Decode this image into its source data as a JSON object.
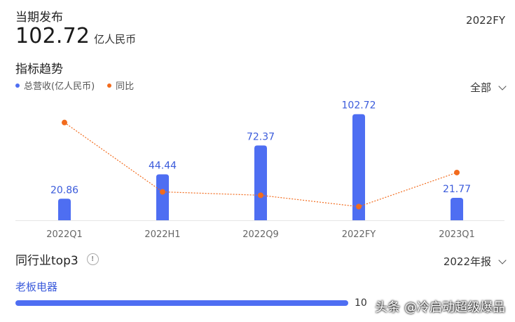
{
  "header": {
    "current_label": "当期发布",
    "period": "2022FY",
    "value": "102.72",
    "unit": "亿人民币"
  },
  "trend": {
    "title": "指标趋势",
    "filter": "全部",
    "colors": {
      "bar": "#4e6ef2",
      "line": "#f26b1d"
    }
  },
  "chart_data": {
    "type": "bar",
    "categories": [
      "2022Q1",
      "2022H1",
      "2022Q9",
      "2022FY",
      "2023Q1"
    ],
    "series": [
      {
        "name": "总营收(亿人民币)",
        "type": "bar",
        "values": [
          20.86,
          44.44,
          72.37,
          102.72,
          21.77
        ]
      },
      {
        "name": "同比",
        "type": "line",
        "values": [
          86,
          25,
          22,
          12,
          42
        ]
      }
    ],
    "value_labels": [
      "20.86",
      "44.44",
      "72.37",
      "102.72",
      "21.77"
    ],
    "legend_position": "top-left",
    "grid": false
  },
  "peers": {
    "title": "同行业top3",
    "info_icon": "info-icon",
    "report_filter": "2022年报",
    "company": "老板电器",
    "company_value_text": "10",
    "company_fraction": 1.0
  },
  "watermark": "头条 @冷启动超级爆品"
}
